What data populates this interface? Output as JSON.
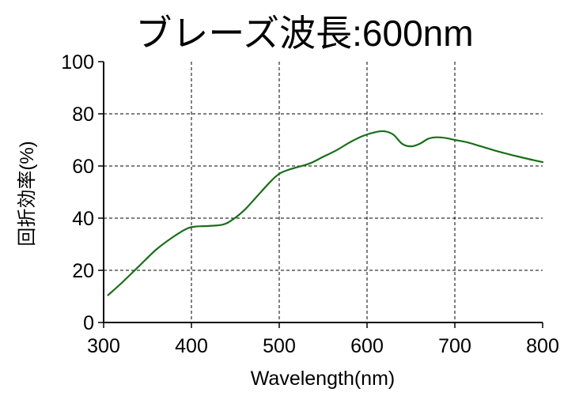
{
  "chart_data": {
    "type": "line",
    "title": "ブレーズ波長:600nm",
    "xlabel": "Wavelength(nm)",
    "ylabel": "回折効率(%)",
    "xlim": [
      300,
      800
    ],
    "ylim": [
      0,
      100
    ],
    "xticks": [
      300,
      400,
      500,
      600,
      700,
      800
    ],
    "yticks": [
      0,
      20,
      40,
      60,
      80,
      100
    ],
    "grid": true,
    "series": [
      {
        "color": "#1a6e1a",
        "x": [
          305,
          320,
          340,
          360,
          380,
          395,
          405,
          420,
          435,
          445,
          460,
          475,
          490,
          500,
          510,
          520,
          535,
          550,
          565,
          580,
          595,
          610,
          620,
          630,
          640,
          650,
          660,
          670,
          680,
          690,
          700,
          715,
          730,
          750,
          770,
          790,
          800
        ],
        "y": [
          10.5,
          15,
          21.5,
          28,
          33,
          36,
          36.8,
          37,
          37.5,
          39,
          43,
          48.5,
          54,
          57,
          58.5,
          59.5,
          61,
          63.5,
          66,
          69,
          71.5,
          73,
          73.3,
          72,
          68.5,
          67.5,
          68.5,
          70.5,
          71,
          70.7,
          70,
          69,
          67.5,
          65.5,
          63.8,
          62.2,
          61.5
        ]
      }
    ]
  }
}
